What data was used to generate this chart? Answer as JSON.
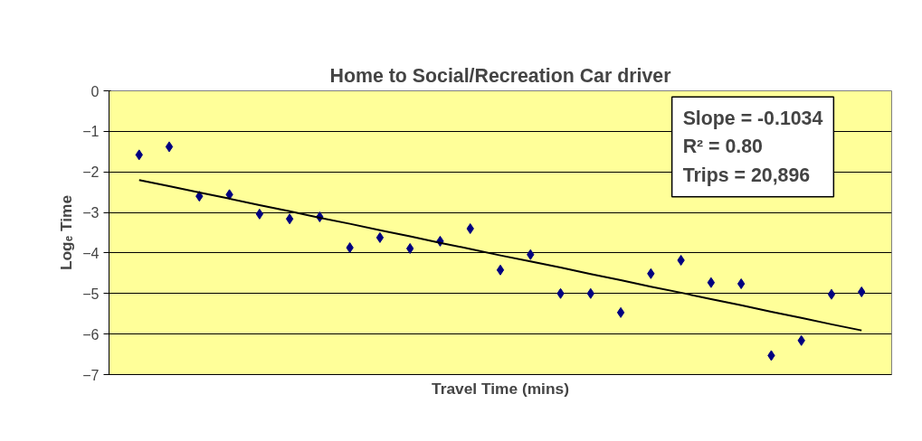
{
  "chart_data": {
    "type": "scatter",
    "title": "Home to Social/Recreation Car driver",
    "xlabel": "Travel Time (mins)",
    "ylabel": "Logₑ Time",
    "categories": [
      null,
      null,
      null,
      null,
      null,
      null,
      null,
      null,
      null,
      null,
      null,
      null,
      null,
      null,
      null,
      null,
      null,
      null,
      null,
      null,
      null,
      null,
      null,
      null,
      null
    ],
    "series": [
      {
        "color": "#000080",
        "marker": "diamond",
        "values": [
          -1.58,
          -1.38,
          -2.6,
          -2.56,
          -3.04,
          -3.16,
          -3.11,
          -3.87,
          -3.62,
          -3.89,
          -3.71,
          -3.4,
          -4.42,
          -4.04,
          -5.0,
          -5.0,
          -5.47,
          -4.51,
          -4.18,
          -4.73,
          -4.76,
          -6.53,
          -6.16,
          -5.02,
          -4.96
        ]
      },
      {
        "type": "line",
        "color": "#000000",
        "values": [
          -2.2,
          -2.35,
          -2.51,
          -2.66,
          -2.82,
          -2.97,
          -3.13,
          -3.28,
          -3.44,
          -3.59,
          -3.75,
          -3.9,
          -4.06,
          -4.21,
          -4.36,
          -4.52,
          -4.67,
          -4.83,
          -4.98,
          -5.14,
          -5.29,
          -5.45,
          -5.6,
          -5.76,
          -5.91
        ]
      }
    ],
    "ylim": [
      -7,
      0
    ],
    "yticks": [
      -7,
      -6,
      -5,
      -4,
      -3,
      -2,
      -1,
      0
    ],
    "annotations": [
      "Slope = -0.1034",
      "R² = 0.80",
      "Trips = 20,896"
    ],
    "grid": "y",
    "line_style": "solid",
    "tick_labels": "y"
  }
}
